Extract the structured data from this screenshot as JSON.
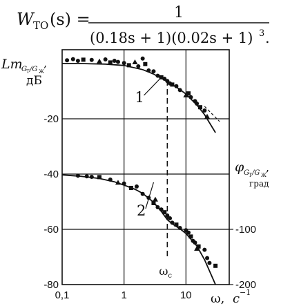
{
  "formula": {
    "lhs_main": "W",
    "lhs_sub": "ТО",
    "lhs_arg": "(s) =",
    "numerator": "1",
    "denominator": "(0.18s + 1)(0.02s + 1)",
    "denominator_power": "3",
    "trailing": "."
  },
  "chart_data": {
    "type": "scatter",
    "x_axis": {
      "scale": "log",
      "range": [
        0.1,
        50
      ],
      "ticks": [
        0.1,
        1,
        10
      ],
      "tick_labels": [
        "0,1",
        "1",
        "10"
      ],
      "label_main": "ω,",
      "label_unit": "c",
      "label_unit_exp": "−1"
    },
    "left_axis": {
      "range": [
        -80,
        5
      ],
      "ticks": [
        -20,
        -40,
        -60,
        -80
      ],
      "tick_labels": [
        "-20",
        "-40",
        "-60",
        "-80"
      ],
      "label_main": "Lm",
      "label_sub": "G",
      "label_sub2": "Т",
      "label_slash": "/G",
      "label_sub3": "Ж",
      "label_comma": ",",
      "label_unit": "дБ"
    },
    "right_axis": {
      "ticks": [
        -100,
        -200
      ],
      "tick_labels": [
        "-100",
        "-200"
      ],
      "label_main": "φ",
      "label_sub": "G",
      "label_sub2": "Т",
      "label_slash": "/G",
      "label_sub3": "Ж",
      "label_comma": ",",
      "label_unit": "град"
    },
    "grid": true,
    "vline": {
      "x": 5,
      "label": "ω",
      "label_sub": "c"
    },
    "curve_labels": [
      {
        "text": "1",
        "x_text": 1.5,
        "y_text": -14,
        "x_to": 4,
        "y_to": -5
      },
      {
        "text": "2",
        "x_text": 1.6,
        "y_text": -55,
        "x_to": 3,
        "y_to": -43
      }
    ],
    "series": [
      {
        "id": "magnitude",
        "line_x": [
          0.1,
          0.2,
          0.5,
          1,
          2,
          3,
          5,
          7,
          10,
          15,
          20,
          30
        ],
        "line_y": [
          0,
          0,
          -0.2,
          -0.7,
          -2.2,
          -3.8,
          -6.5,
          -8.5,
          -11,
          -15,
          -18.5,
          -25
        ],
        "dash_x": [
          20,
          35
        ],
        "dash_y": [
          -15.5,
          -21
        ],
        "points": [
          [
            0.12,
            1.2
          ],
          [
            0.15,
            1.6
          ],
          [
            0.18,
            1.0
          ],
          [
            0.22,
            1.4
          ],
          [
            0.3,
            1.3
          ],
          [
            0.4,
            0.8
          ],
          [
            0.5,
            1.5
          ],
          [
            0.6,
            0.4
          ],
          [
            0.7,
            1.0
          ],
          [
            0.8,
            0.6
          ],
          [
            1.0,
            0.2
          ],
          [
            1.2,
            -0.6
          ],
          [
            1.5,
            0.5
          ],
          [
            1.7,
            -1.0
          ],
          [
            2.0,
            1.8
          ],
          [
            2.2,
            -0.2
          ],
          [
            2.5,
            -2.5
          ],
          [
            3.0,
            -2.8
          ],
          [
            3.5,
            -4.4
          ],
          [
            4.0,
            -5.0
          ],
          [
            4.5,
            -5.5
          ],
          [
            5.0,
            -6.3
          ],
          [
            5.5,
            -7.2
          ],
          [
            6.0,
            -7.6
          ],
          [
            7.0,
            -8.2
          ],
          [
            8.0,
            -9.6
          ],
          [
            10.0,
            -11.5
          ],
          [
            11.0,
            -10.8
          ],
          [
            12.0,
            -12.2
          ],
          [
            14.0,
            -13.6
          ],
          [
            15.0,
            -14.5
          ],
          [
            17.0,
            -15.8
          ],
          [
            20.0,
            -17.0
          ],
          [
            22.0,
            -19.2
          ]
        ]
      },
      {
        "id": "phase",
        "line_x": [
          0.1,
          0.2,
          0.4,
          0.7,
          1,
          1.5,
          2,
          3,
          4,
          5,
          6,
          8,
          10,
          15,
          20,
          30
        ],
        "line_y": [
          -40.3,
          -40.8,
          -41.6,
          -42.8,
          -44.0,
          -45.5,
          -47.0,
          -50.2,
          -53.5,
          -56.5,
          -58.0,
          -59.8,
          -61.5,
          -66.0,
          -71.0,
          -80.0
        ],
        "points": [
          [
            0.18,
            -40.6
          ],
          [
            0.25,
            -40.8
          ],
          [
            0.3,
            -41.0
          ],
          [
            0.4,
            -41.1
          ],
          [
            0.6,
            -42.0
          ],
          [
            0.8,
            -43.1
          ],
          [
            1.0,
            -43.4
          ],
          [
            1.3,
            -45.0
          ],
          [
            1.6,
            -44.5
          ],
          [
            2.0,
            -47.2
          ],
          [
            2.5,
            -48.6
          ],
          [
            3.0,
            -50.5
          ],
          [
            3.2,
            -49.2
          ],
          [
            3.5,
            -52.0
          ],
          [
            4.0,
            -52.8
          ],
          [
            4.5,
            -53.8
          ],
          [
            5.0,
            -55.0
          ],
          [
            5.5,
            -56.0
          ],
          [
            6.0,
            -57.6
          ],
          [
            7.0,
            -58.3
          ],
          [
            8.0,
            -59.5
          ],
          [
            10.0,
            -60.3
          ],
          [
            11.0,
            -61.2
          ],
          [
            12.0,
            -62.6
          ],
          [
            13.0,
            -64.2
          ],
          [
            14.0,
            -64.8
          ],
          [
            15.0,
            -67.0
          ],
          [
            16.0,
            -66.2
          ],
          [
            20.0,
            -67.4
          ],
          [
            22.0,
            -70.4
          ],
          [
            24.0,
            -72.2
          ],
          [
            30.0,
            -73.2
          ]
        ]
      }
    ]
  }
}
